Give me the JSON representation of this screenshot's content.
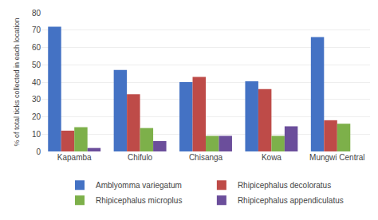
{
  "chart_data": {
    "type": "bar",
    "categories": [
      "Kapamba",
      "Chifulo",
      "Chisanga",
      "Kowa",
      "Mungwi Central"
    ],
    "series": [
      {
        "name": "Amblyomma variegatum",
        "color": "#4472C4",
        "values": [
          72,
          47,
          40,
          40.5,
          66
        ]
      },
      {
        "name": "Rhipicephalus decoloratus",
        "color": "#BE4B48",
        "values": [
          12,
          33,
          43,
          36,
          18
        ]
      },
      {
        "name": "Rhipicephalus microplus",
        "color": "#7DB04A",
        "values": [
          14,
          13.5,
          9,
          9,
          16
        ]
      },
      {
        "name": "Rhipicephalus appendiculatus",
        "color": "#6B4E9B",
        "values": [
          2,
          6,
          9,
          14.5,
          0
        ]
      }
    ],
    "ylabel": "% of total ticks collected in each location",
    "ylim": [
      0,
      80
    ],
    "yticks": [
      0,
      10,
      20,
      30,
      40,
      50,
      60,
      70,
      80
    ],
    "grid": true,
    "legend": "bottom"
  }
}
